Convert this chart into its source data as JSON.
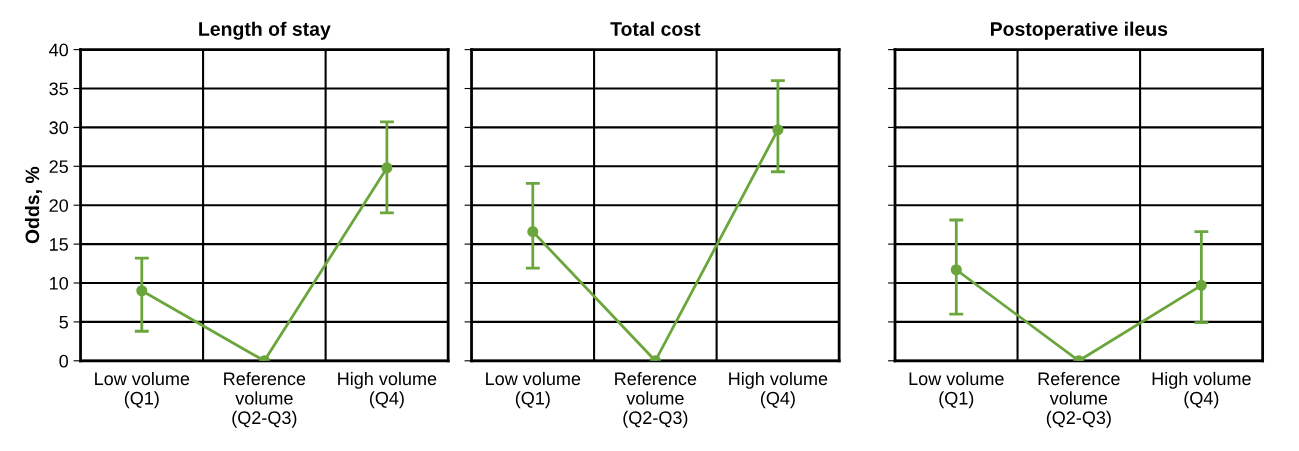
{
  "chart_data": [
    {
      "type": "line",
      "title": "Length of stay",
      "ylabel": "Odds, %",
      "categories": [
        "Low volume\n(Q1)",
        "Reference\nvolume\n(Q2-Q3)",
        "High volume\n(Q4)"
      ],
      "values": [
        9.0,
        0,
        24.8
      ],
      "errors": [
        [
          3.8,
          13.2
        ],
        null,
        [
          19.0,
          30.7
        ]
      ],
      "color": "#6aa63c",
      "marker": "circle",
      "ylim": [
        0,
        40
      ],
      "yticks": [
        0,
        5,
        10,
        15,
        20,
        25,
        30,
        35,
        40
      ],
      "grid": true
    },
    {
      "type": "line",
      "title": "Total cost",
      "categories": [
        "Low volume\n(Q1)",
        "Reference\nvolume\n(Q2-Q3)",
        "High volume\n(Q4)"
      ],
      "values": [
        16.6,
        0,
        29.7
      ],
      "errors": [
        [
          11.9,
          22.8
        ],
        null,
        [
          24.3,
          36.0
        ]
      ],
      "color": "#6aa63c",
      "marker": "circle",
      "ylim": [
        0,
        40
      ],
      "yticks": [
        0,
        5,
        10,
        15,
        20,
        25,
        30,
        35,
        40
      ],
      "grid": true,
      "tick_labels": "x"
    },
    {
      "type": "line",
      "title": "Postoperative ileus",
      "categories": [
        "Low volume\n(Q1)",
        "Reference\nvolume\n(Q2-Q3)",
        "High volume\n(Q4)"
      ],
      "values": [
        11.7,
        0,
        9.7
      ],
      "errors": [
        [
          6.0,
          18.1
        ],
        null,
        [
          4.9,
          16.6
        ]
      ],
      "color": "#6aa63c",
      "marker": "circle",
      "ylim": [
        0,
        40
      ],
      "yticks": [
        0,
        5,
        10,
        15,
        20,
        25,
        30,
        35,
        40
      ],
      "grid": true,
      "tick_labels": "x"
    }
  ]
}
